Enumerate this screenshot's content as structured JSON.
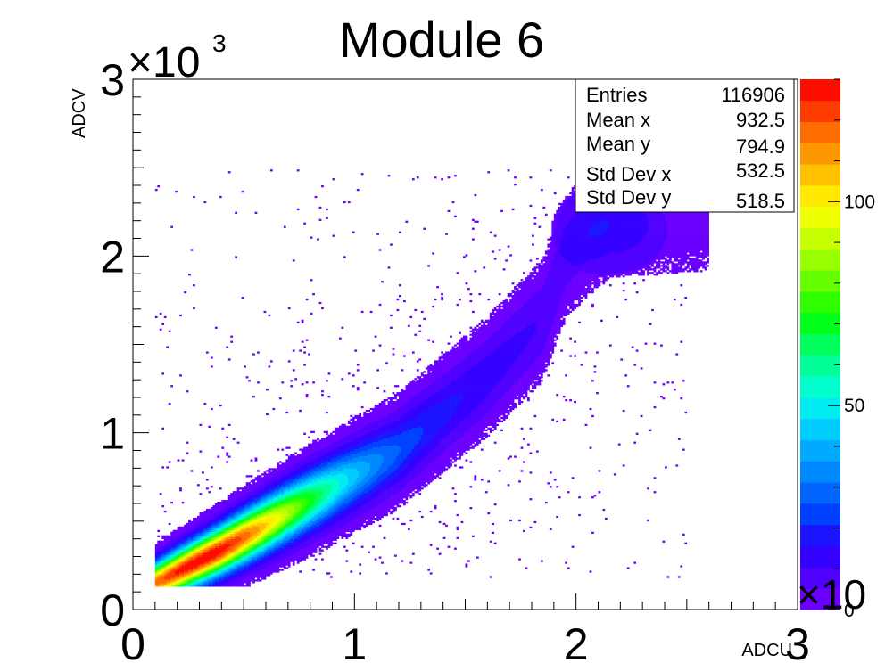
{
  "chart_data": {
    "type": "heatmap",
    "title": "Module 6",
    "xlabel": "ADCU",
    "ylabel": "ADCV",
    "x_multiplier_label": "×10",
    "x_multiplier_exp": "3",
    "y_multiplier_label": "×10",
    "y_multiplier_exp": "3",
    "z_multiplier_label": "×10",
    "xlim": [
      0,
      3000
    ],
    "ylim": [
      0,
      3000
    ],
    "zlim": [
      0,
      130
    ],
    "x_ticks": [
      {
        "value": 0,
        "label": "0"
      },
      {
        "value": 1000,
        "label": "1"
      },
      {
        "value": 2000,
        "label": "2"
      },
      {
        "value": 3000,
        "label": "3"
      }
    ],
    "y_ticks": [
      {
        "value": 0,
        "label": "0"
      },
      {
        "value": 1000,
        "label": "1"
      },
      {
        "value": 2000,
        "label": "2"
      },
      {
        "value": 3000,
        "label": "3"
      }
    ],
    "z_ticks": [
      {
        "value": 0,
        "label": "0"
      },
      {
        "value": 50,
        "label": "50"
      },
      {
        "value": 100,
        "label": "100"
      }
    ],
    "palette": [
      "#6a00ff",
      "#5000ff",
      "#3400ff",
      "#1c14ff",
      "#0040ff",
      "#0064ff",
      "#0088ff",
      "#00aaff",
      "#00ccff",
      "#00ecf0",
      "#00ffcc",
      "#00ff99",
      "#00ff5a",
      "#00ff1a",
      "#30ff00",
      "#66ff00",
      "#99ff00",
      "#c8ff00",
      "#eeff00",
      "#ffea00",
      "#ffc000",
      "#ff9800",
      "#ff6c00",
      "#ff3c00",
      "#ff0c00"
    ],
    "density_model": {
      "core_ridge": [
        [
          100,
          150
        ],
        [
          400,
          340
        ],
        [
          800,
          620
        ],
        [
          1200,
          900
        ],
        [
          1600,
          1320
        ],
        [
          1850,
          1640
        ],
        [
          1950,
          2000
        ],
        [
          2150,
          2220
        ]
      ],
      "peak_count": 125,
      "peak_location": [
        300,
        260
      ],
      "ridge_width": 70,
      "blob_center": [
        2150,
        2150
      ],
      "blob_count": 8,
      "noise_region": [
        [
          100,
          180
        ],
        [
          2500,
          2500
        ]
      ]
    },
    "stats": {
      "title": "",
      "rows": [
        {
          "label": "Entries",
          "value": "116906"
        },
        {
          "label": "Mean x",
          "value": "932.5"
        },
        {
          "label": "Mean y",
          "value": "794.9"
        },
        {
          "label": "Std Dev x",
          "value": "532.5"
        },
        {
          "label": "Std Dev y",
          "value": "518.5"
        }
      ]
    },
    "legend": "none",
    "grid": false
  }
}
